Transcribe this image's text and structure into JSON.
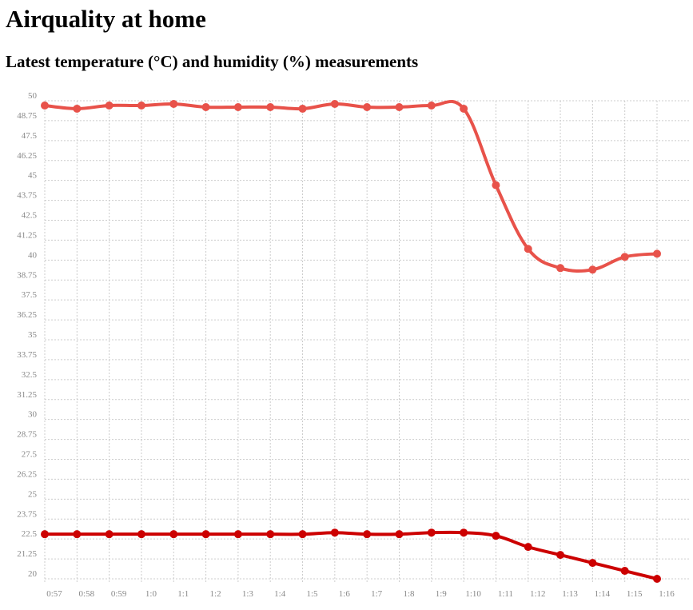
{
  "page": {
    "title": "Airquality at home",
    "subtitle": "Latest temperature (°C) and humidity (%) measurements"
  },
  "chart_data": {
    "type": "line",
    "categories": [
      "0:57",
      "0:58",
      "0:59",
      "1:0",
      "1:1",
      "1:2",
      "1:3",
      "1:4",
      "1:5",
      "1:6",
      "1:7",
      "1:8",
      "1:9",
      "1:10",
      "1:11",
      "1:12",
      "1:13",
      "1:14",
      "1:15",
      "1:16"
    ],
    "ylim": [
      20,
      50
    ],
    "y_ticks": [
      "20",
      "21.25",
      "22.5",
      "23.75",
      "25",
      "26.25",
      "27.5",
      "28.75",
      "30",
      "31.25",
      "32.5",
      "33.75",
      "35",
      "36.25",
      "37.5",
      "38.75",
      "40",
      "41.25",
      "42.5",
      "43.75",
      "45",
      "46.25",
      "47.5",
      "48.75",
      "50"
    ],
    "grid": true,
    "series": [
      {
        "color": "#e8524a",
        "values": [
          49.7,
          49.5,
          49.7,
          49.7,
          49.8,
          49.6,
          49.6,
          49.6,
          49.5,
          49.8,
          49.6,
          49.6,
          49.7,
          49.5,
          44.7,
          40.7,
          39.5,
          39.4,
          40.2,
          40.4
        ]
      },
      {
        "color": "#cc0000",
        "values": [
          22.8,
          22.8,
          22.8,
          22.8,
          22.8,
          22.8,
          22.8,
          22.8,
          22.8,
          22.9,
          22.8,
          22.8,
          22.9,
          22.9,
          22.7,
          22.0,
          21.5,
          21.0,
          20.5,
          20.0
        ]
      }
    ]
  }
}
